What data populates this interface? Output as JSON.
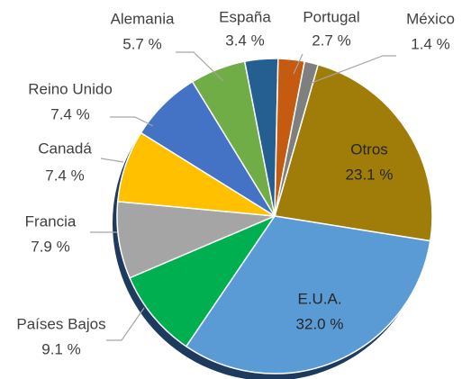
{
  "chart_data": {
    "type": "pie",
    "categories": [
      "Otros",
      "E.U.A.",
      "Países Bajos",
      "Francia",
      "Canadá",
      "Reino Unido",
      "Alemania",
      "España",
      "Portugal",
      "México"
    ],
    "values": [
      23.1,
      32.0,
      9.1,
      7.9,
      7.4,
      7.4,
      5.7,
      3.4,
      2.7,
      1.4
    ],
    "value_labels": [
      "23.1 %",
      "32.0 %",
      "9.1 %",
      "7.9 %",
      "7.4 %",
      "7.4 %",
      "5.7 %",
      "3.4 %",
      "2.7 %",
      "1.4 %"
    ],
    "colors": [
      "#a07d08",
      "#5b9bd5",
      "#00b050",
      "#a5a5a5",
      "#ffc000",
      "#4472c4",
      "#70ad47",
      "#255e91",
      "#c55a11",
      "#7f7f7f"
    ]
  }
}
